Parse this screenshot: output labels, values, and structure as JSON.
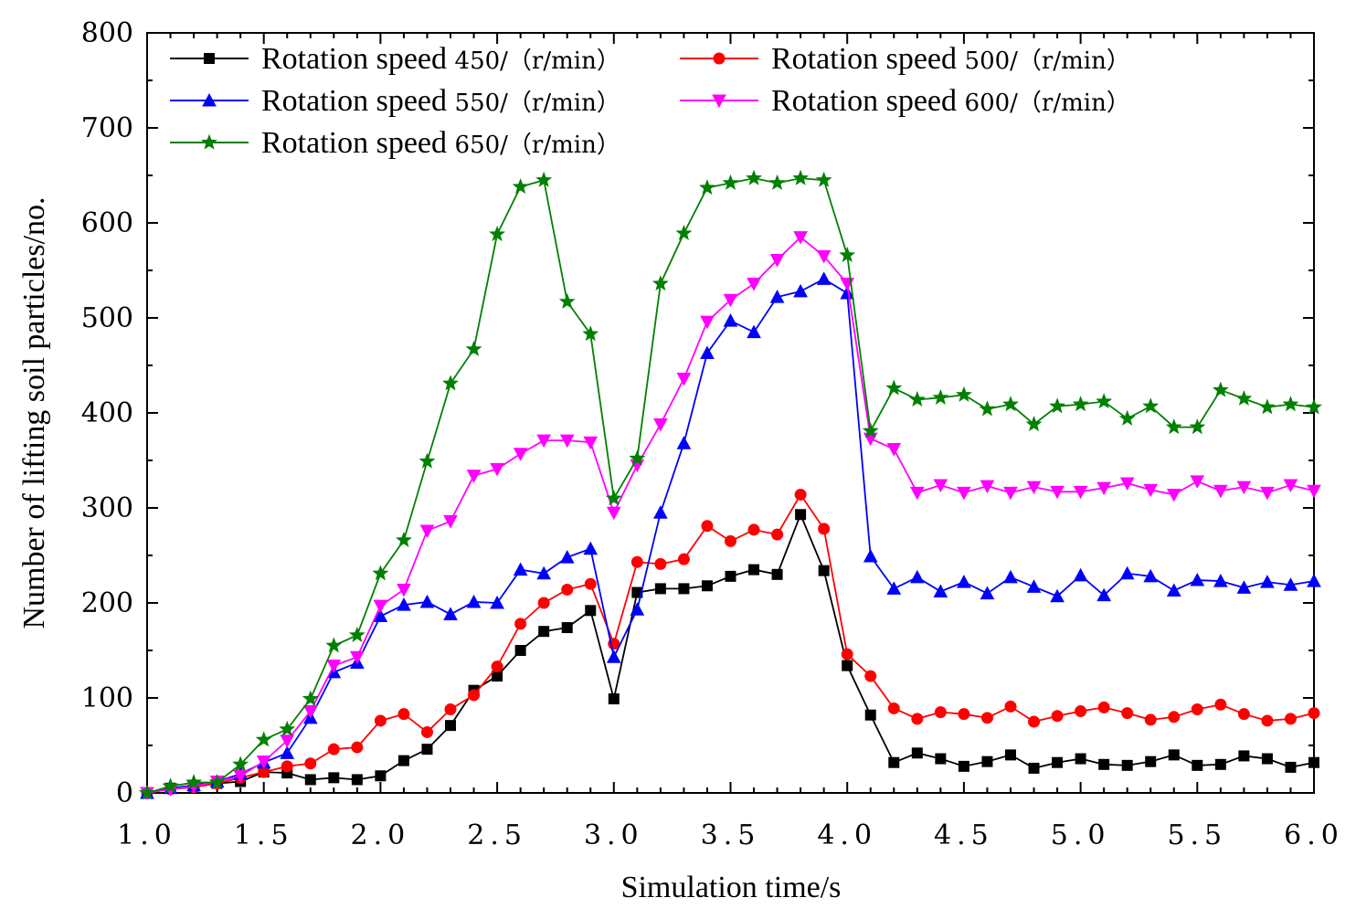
{
  "chart_data": {
    "type": "line",
    "title": "",
    "xlabel": "Simulation time/s",
    "ylabel": "Number of lifting soil particles/no.",
    "xlim": [
      1.0,
      6.0
    ],
    "ylim": [
      0,
      800
    ],
    "xticks": [
      "1.0",
      "1.5",
      "2.0",
      "2.5",
      "3.0",
      "3.5",
      "4.0",
      "4.5",
      "5.0",
      "5.5",
      "6.0"
    ],
    "yticks": [
      "0",
      "100",
      "200",
      "300",
      "400",
      "500",
      "600",
      "700",
      "800"
    ],
    "grid": false,
    "legend_position": "top-left",
    "x": [
      1.0,
      1.1,
      1.2,
      1.3,
      1.4,
      1.5,
      1.6,
      1.7,
      1.8,
      1.9,
      2.0,
      2.1,
      2.2,
      2.3,
      2.4,
      2.5,
      2.6,
      2.7,
      2.8,
      2.9,
      3.0,
      3.1,
      3.2,
      3.3,
      3.4,
      3.5,
      3.6,
      3.7,
      3.8,
      3.9,
      4.0,
      4.1,
      4.2,
      4.3,
      4.4,
      4.5,
      4.6,
      4.7,
      4.8,
      4.9,
      5.0,
      5.1,
      5.2,
      5.3,
      5.4,
      5.5,
      5.6,
      5.7,
      5.8,
      5.9,
      6.0
    ],
    "series": [
      {
        "name_main": "Rotation speed",
        "name_unit": "450/（r/min）",
        "color": "#000000",
        "marker": "square",
        "values": [
          0,
          5,
          7,
          10,
          12,
          22,
          21,
          14,
          16,
          14,
          18,
          34,
          46,
          71,
          108,
          123,
          150,
          170,
          174,
          192,
          99,
          211,
          215,
          215,
          218,
          228,
          235,
          230,
          293,
          234,
          134,
          82,
          32,
          42,
          36,
          28,
          33,
          40,
          26,
          32,
          36,
          30,
          29,
          33,
          40,
          29,
          30,
          39,
          36,
          27,
          32
        ]
      },
      {
        "name_main": "Rotation speed",
        "name_unit": "500/（r/min）",
        "color": "#ff0000",
        "marker": "circle",
        "values": [
          0,
          4,
          6,
          10,
          16,
          22,
          28,
          31,
          46,
          48,
          76,
          83,
          64,
          88,
          103,
          133,
          178,
          200,
          214,
          220,
          157,
          243,
          241,
          246,
          281,
          265,
          277,
          272,
          314,
          278,
          146,
          123,
          89,
          78,
          85,
          83,
          79,
          91,
          75,
          81,
          86,
          90,
          84,
          77,
          80,
          88,
          93,
          83,
          76,
          78,
          84
        ]
      },
      {
        "name_main": "Rotation speed",
        "name_unit": "550/（r/min）",
        "color": "#0000ff",
        "marker": "triangle-up",
        "values": [
          0,
          5,
          8,
          12,
          20,
          32,
          42,
          79,
          127,
          137,
          186,
          198,
          201,
          188,
          201,
          200,
          235,
          231,
          248,
          257,
          143,
          193,
          295,
          368,
          463,
          497,
          485,
          522,
          528,
          541,
          526,
          249,
          215,
          227,
          212,
          222,
          210,
          227,
          217,
          207,
          229,
          208,
          231,
          228,
          213,
          224,
          223,
          216,
          222,
          219,
          223
        ]
      },
      {
        "name_main": "Rotation speed",
        "name_unit": "600/（r/min）",
        "color": "#ff00ff",
        "marker": "triangle-down",
        "values": [
          0,
          4,
          7,
          12,
          18,
          33,
          55,
          86,
          134,
          143,
          197,
          214,
          276,
          286,
          334,
          341,
          357,
          371,
          371,
          369,
          295,
          345,
          388,
          436,
          496,
          519,
          536,
          561,
          585,
          565,
          536,
          373,
          362,
          316,
          324,
          316,
          323,
          316,
          322,
          317,
          317,
          321,
          326,
          319,
          314,
          328,
          318,
          322,
          316,
          324,
          318
        ]
      },
      {
        "name_main": "Rotation speed",
        "name_unit": "650/（r/min）",
        "color": "#008000",
        "marker": "star",
        "values": [
          0,
          7,
          11,
          11,
          30,
          56,
          67,
          99,
          155,
          166,
          231,
          266,
          349,
          431,
          467,
          588,
          638,
          645,
          517,
          483,
          310,
          352,
          536,
          589,
          637,
          642,
          647,
          642,
          647,
          645,
          566,
          381,
          426,
          414,
          416,
          419,
          404,
          409,
          388,
          407,
          409,
          412,
          394,
          407,
          385,
          385,
          424,
          415,
          406,
          409,
          406
        ]
      }
    ]
  }
}
